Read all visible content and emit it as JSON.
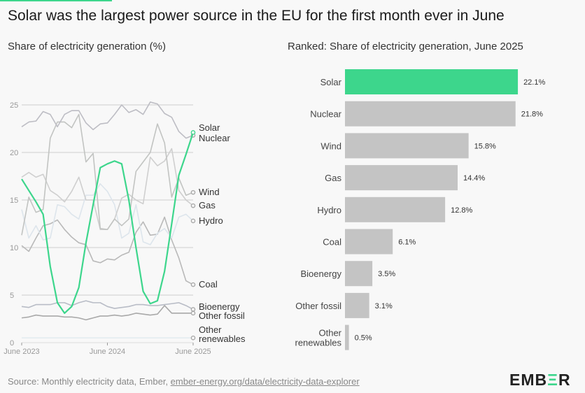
{
  "title": "Solar was the largest power source in the EU for the first month ever in June",
  "source_prefix": "Source: Monthly electricity data, Ember, ",
  "source_link": "ember-energy.org/data/electricity-data-explorer",
  "logo": "EMBER",
  "colors": {
    "accent": "#3dd68c",
    "grey": "#c4c4c4",
    "background": "#f8f8f8"
  },
  "chart_data": [
    {
      "type": "line",
      "title": "Share of electricity generation (%)",
      "ylim": [
        0,
        25
      ],
      "yticks": [
        0,
        5,
        10,
        15,
        20,
        25
      ],
      "xticks": [
        "June 2023",
        "June 2024",
        "June 2025"
      ],
      "grid": true,
      "x_range": [
        "June 2023",
        "June 2025"
      ],
      "series": [
        {
          "name": "Solar",
          "color": "#3dd68c",
          "values": [
            17.2,
            16.0,
            14.8,
            13.5,
            8.0,
            4.2,
            3.1,
            3.8,
            5.8,
            10.5,
            14.5,
            18.4,
            18.8,
            19.1,
            18.8,
            15.0,
            10.0,
            5.4,
            4.1,
            4.4,
            7.5,
            12.5,
            17.6,
            19.8,
            22.1
          ]
        },
        {
          "name": "Nuclear",
          "color": "#bdbdc4",
          "values": [
            22.7,
            23.2,
            23.3,
            24.3,
            24.0,
            22.7,
            24.0,
            24.4,
            24.4,
            23.1,
            22.4,
            23.0,
            23.1,
            24.0,
            25.0,
            24.2,
            24.5,
            24.0,
            25.3,
            25.1,
            24.1,
            23.7,
            22.2,
            21.5,
            21.8
          ]
        },
        {
          "name": "Wind",
          "color": "#c2c4c2",
          "values": [
            11.3,
            15.3,
            13.7,
            14.0,
            21.5,
            23.2,
            23.2,
            22.6,
            24.0,
            19.0,
            19.9,
            12.0,
            11.9,
            13.0,
            12.3,
            13.0,
            18.0,
            19.0,
            20.0,
            23.0,
            21.0,
            15.3,
            17.3,
            15.5,
            15.8
          ]
        },
        {
          "name": "Gas",
          "color": "#cfcfcf",
          "values": [
            17.4,
            17.9,
            17.4,
            17.7,
            16.0,
            15.5,
            14.8,
            15.9,
            17.4,
            15.0,
            15.0,
            11.9,
            11.9,
            13.0,
            15.2,
            15.6,
            15.0,
            14.6,
            19.5,
            18.6,
            19.1,
            20.4,
            16.0,
            15.0,
            14.4
          ]
        },
        {
          "name": "Hydro",
          "color": "#dde5ec",
          "values": [
            14.0,
            11.0,
            12.3,
            10.8,
            11.0,
            14.5,
            14.3,
            13.5,
            13.0,
            15.5,
            15.5,
            16.7,
            15.9,
            14.5,
            11.0,
            11.5,
            14.5,
            10.6,
            10.3,
            11.5,
            12.0,
            11.0,
            13.2,
            13.5,
            12.8
          ]
        },
        {
          "name": "Coal",
          "color": "#b9b9b9",
          "values": [
            10.2,
            9.6,
            11.0,
            12.3,
            12.5,
            12.9,
            11.9,
            11.1,
            10.5,
            10.3,
            8.6,
            8.4,
            8.8,
            8.7,
            9.2,
            9.5,
            11.6,
            12.7,
            11.3,
            11.4,
            13.2,
            10.8,
            8.9,
            6.5,
            6.1
          ]
        },
        {
          "name": "Bioenergy",
          "color": "#b8bcc6",
          "values": [
            3.8,
            3.7,
            4.0,
            4.0,
            4.0,
            4.2,
            4.2,
            3.9,
            4.2,
            4.4,
            4.2,
            4.2,
            3.8,
            3.6,
            3.7,
            3.8,
            4.0,
            4.0,
            3.9,
            3.9,
            4.0,
            4.1,
            4.2,
            3.9,
            3.5
          ]
        },
        {
          "name": "Other fossil",
          "color": "#a9a9a9",
          "values": [
            2.6,
            2.7,
            2.9,
            2.8,
            2.8,
            2.8,
            2.7,
            2.7,
            2.6,
            2.4,
            2.6,
            2.8,
            2.8,
            2.9,
            2.8,
            2.9,
            3.1,
            3.0,
            2.9,
            3.0,
            3.9,
            3.1,
            3.1,
            3.1,
            3.1
          ]
        },
        {
          "name": "Other renewables",
          "color": "#e3ecf0",
          "values": [
            0.5,
            0.5,
            0.5,
            0.5,
            0.5,
            0.5,
            0.5,
            0.5,
            0.5,
            0.5,
            0.5,
            0.5,
            0.5,
            0.5,
            0.5,
            0.5,
            0.5,
            0.5,
            0.5,
            0.5,
            0.5,
            0.5,
            0.5,
            0.5,
            0.5
          ]
        }
      ]
    },
    {
      "type": "bar",
      "orientation": "horizontal",
      "title": "Ranked: Share of electricity generation, June 2025",
      "categories": [
        "Solar",
        "Nuclear",
        "Wind",
        "Gas",
        "Hydro",
        "Coal",
        "Bioenergy",
        "Other fossil",
        "Other renewables"
      ],
      "values": [
        22.1,
        21.8,
        15.8,
        14.4,
        12.8,
        6.1,
        3.5,
        3.1,
        0.5
      ],
      "labels": [
        "22.1%",
        "21.8%",
        "15.8%",
        "14.4%",
        "12.8%",
        "6.1%",
        "3.5%",
        "3.1%",
        "0.5%"
      ],
      "highlight": "Solar"
    }
  ]
}
